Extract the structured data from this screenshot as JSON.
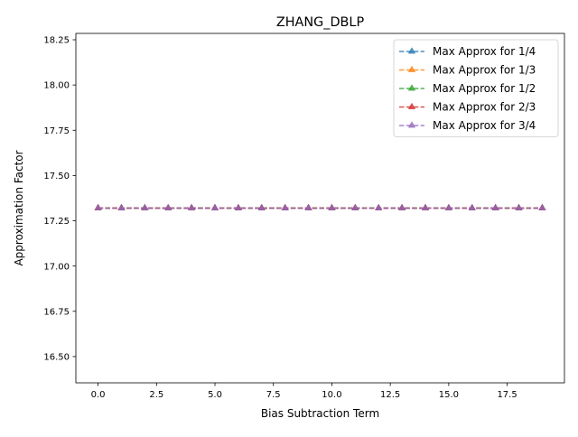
{
  "chart_data": {
    "type": "line",
    "title": "ZHANG_DBLP",
    "xlabel": "Bias Subtraction Term",
    "ylabel": "Approximation Factor",
    "xlim": [
      -0.95,
      19.95
    ],
    "ylim": [
      16.355,
      18.285
    ],
    "x_ticks": [
      0.0,
      2.5,
      5.0,
      7.5,
      10.0,
      12.5,
      15.0,
      17.5
    ],
    "x_tick_labels": [
      "0.0",
      "2.5",
      "5.0",
      "7.5",
      "10.0",
      "12.5",
      "15.0",
      "17.5"
    ],
    "y_ticks": [
      16.5,
      16.75,
      17.0,
      17.25,
      17.5,
      17.75,
      18.0,
      18.25
    ],
    "y_tick_labels": [
      "16.50",
      "16.75",
      "17.00",
      "17.25",
      "17.50",
      "17.75",
      "18.00",
      "18.25"
    ],
    "grid": false,
    "legend_position": "top-right",
    "marker": "triangle-up",
    "line_style": "dashed",
    "x": [
      0,
      1,
      2,
      3,
      4,
      5,
      6,
      7,
      8,
      9,
      10,
      11,
      12,
      13,
      14,
      15,
      16,
      17,
      18,
      19
    ],
    "series": [
      {
        "name": "Max Approx for 1/4",
        "color": "#1f77b4",
        "values": [
          17.32,
          17.32,
          17.32,
          17.32,
          17.32,
          17.32,
          17.32,
          17.32,
          17.32,
          17.32,
          17.32,
          17.32,
          17.32,
          17.32,
          17.32,
          17.32,
          17.32,
          17.32,
          17.32,
          17.32
        ]
      },
      {
        "name": "Max Approx for 1/3",
        "color": "#ff7f0e",
        "values": [
          17.32,
          17.32,
          17.32,
          17.32,
          17.32,
          17.32,
          17.32,
          17.32,
          17.32,
          17.32,
          17.32,
          17.32,
          17.32,
          17.32,
          17.32,
          17.32,
          17.32,
          17.32,
          17.32,
          17.32
        ]
      },
      {
        "name": "Max Approx for 1/2",
        "color": "#2ca02c",
        "values": [
          17.32,
          17.32,
          17.32,
          17.32,
          17.32,
          17.32,
          17.32,
          17.32,
          17.32,
          17.32,
          17.32,
          17.32,
          17.32,
          17.32,
          17.32,
          17.32,
          17.32,
          17.32,
          17.32,
          17.32
        ]
      },
      {
        "name": "Max Approx for 2/3",
        "color": "#d62728",
        "values": [
          17.32,
          17.32,
          17.32,
          17.32,
          17.32,
          17.32,
          17.32,
          17.32,
          17.32,
          17.32,
          17.32,
          17.32,
          17.32,
          17.32,
          17.32,
          17.32,
          17.32,
          17.32,
          17.32,
          17.32
        ]
      },
      {
        "name": "Max Approx for 3/4",
        "color": "#9467bd",
        "values": [
          17.32,
          17.32,
          17.32,
          17.32,
          17.32,
          17.32,
          17.32,
          17.32,
          17.32,
          17.32,
          17.32,
          17.32,
          17.32,
          17.32,
          17.32,
          17.32,
          17.32,
          17.32,
          17.32,
          17.32
        ]
      }
    ]
  }
}
